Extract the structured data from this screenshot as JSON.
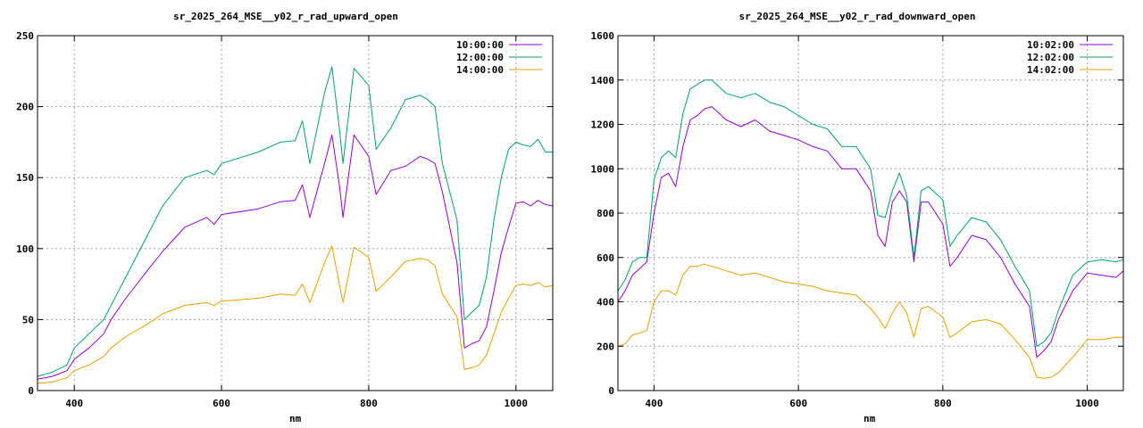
{
  "chart_data": [
    {
      "type": "line",
      "title": "sr_2025_264_MSE__y02_r_rad_upward_open",
      "xlabel": "nm",
      "ylabel": "",
      "xlim": [
        350,
        1050
      ],
      "ylim": [
        0,
        250
      ],
      "xticks": [
        400,
        600,
        800,
        1000
      ],
      "yticks": [
        0,
        50,
        100,
        150,
        200,
        250
      ],
      "grid": true,
      "legend_position": "top-right",
      "series": [
        {
          "name": "10:00:00",
          "color": "#9400d3",
          "x": [
            350,
            370,
            390,
            400,
            420,
            440,
            450,
            470,
            500,
            520,
            550,
            580,
            590,
            600,
            650,
            680,
            700,
            710,
            720,
            740,
            750,
            760,
            765,
            780,
            800,
            810,
            830,
            850,
            870,
            880,
            890,
            900,
            920,
            930,
            940,
            950,
            960,
            970,
            980,
            990,
            1000,
            1010,
            1020,
            1030,
            1040,
            1050
          ],
          "y": [
            8,
            10,
            14,
            22,
            30,
            40,
            50,
            65,
            85,
            98,
            115,
            122,
            117,
            124,
            128,
            133,
            134,
            145,
            122,
            160,
            180,
            145,
            122,
            180,
            165,
            138,
            155,
            158,
            165,
            163,
            160,
            140,
            90,
            30,
            33,
            35,
            45,
            70,
            97,
            115,
            132,
            133,
            130,
            134,
            131,
            130
          ]
        },
        {
          "name": "12:00:00",
          "color": "#009e73",
          "x": [
            350,
            370,
            390,
            400,
            420,
            440,
            450,
            470,
            500,
            520,
            550,
            580,
            590,
            600,
            650,
            680,
            700,
            710,
            720,
            740,
            750,
            760,
            765,
            780,
            800,
            810,
            830,
            850,
            870,
            880,
            890,
            900,
            920,
            930,
            940,
            950,
            960,
            970,
            980,
            990,
            1000,
            1010,
            1020,
            1030,
            1040,
            1050
          ],
          "y": [
            10,
            13,
            18,
            30,
            40,
            50,
            60,
            80,
            110,
            130,
            150,
            155,
            152,
            160,
            168,
            175,
            176,
            190,
            160,
            210,
            228,
            185,
            160,
            227,
            215,
            170,
            185,
            205,
            208,
            205,
            200,
            160,
            120,
            50,
            55,
            60,
            80,
            120,
            150,
            170,
            175,
            173,
            172,
            177,
            168,
            168
          ]
        },
        {
          "name": "14:00:00",
          "color": "#e69f00",
          "x": [
            350,
            370,
            390,
            400,
            420,
            440,
            450,
            470,
            500,
            520,
            550,
            580,
            590,
            600,
            650,
            680,
            700,
            710,
            720,
            740,
            750,
            760,
            765,
            780,
            800,
            810,
            830,
            850,
            870,
            880,
            890,
            900,
            920,
            930,
            940,
            950,
            960,
            970,
            980,
            990,
            1000,
            1010,
            1020,
            1030,
            1040,
            1050
          ],
          "y": [
            5,
            6,
            9,
            14,
            18,
            24,
            30,
            38,
            47,
            54,
            60,
            62,
            60,
            63,
            65,
            68,
            67,
            75,
            62,
            90,
            102,
            75,
            62,
            101,
            94,
            70,
            80,
            91,
            93,
            92,
            88,
            68,
            52,
            15,
            16,
            18,
            25,
            40,
            55,
            65,
            74,
            75,
            74,
            76,
            73,
            74
          ]
        }
      ]
    },
    {
      "type": "line",
      "title": "sr_2025_264_MSE__y02_r_rad_downward_open",
      "xlabel": "nm",
      "ylabel": "",
      "xlim": [
        350,
        1050
      ],
      "ylim": [
        0,
        1600
      ],
      "xticks": [
        400,
        600,
        800,
        1000
      ],
      "yticks": [
        0,
        200,
        400,
        600,
        800,
        1000,
        1200,
        1400,
        1600
      ],
      "grid": true,
      "legend_position": "top-right",
      "series": [
        {
          "name": "10:02:00",
          "color": "#9400d3",
          "x": [
            350,
            360,
            370,
            380,
            390,
            400,
            410,
            420,
            430,
            440,
            450,
            460,
            470,
            480,
            500,
            520,
            540,
            560,
            580,
            600,
            620,
            640,
            660,
            680,
            700,
            710,
            720,
            730,
            740,
            750,
            760,
            770,
            780,
            800,
            810,
            820,
            840,
            860,
            880,
            900,
            920,
            930,
            940,
            950,
            960,
            980,
            1000,
            1020,
            1040,
            1050
          ],
          "y": [
            400,
            450,
            520,
            550,
            580,
            800,
            960,
            980,
            920,
            1100,
            1220,
            1240,
            1270,
            1280,
            1220,
            1190,
            1220,
            1170,
            1150,
            1130,
            1100,
            1080,
            1000,
            1000,
            900,
            700,
            650,
            850,
            900,
            850,
            580,
            850,
            850,
            750,
            560,
            600,
            700,
            680,
            600,
            480,
            380,
            150,
            180,
            220,
            320,
            450,
            530,
            520,
            510,
            540
          ]
        },
        {
          "name": "12:02:00",
          "color": "#009e73",
          "x": [
            350,
            360,
            370,
            380,
            390,
            400,
            410,
            420,
            430,
            440,
            450,
            460,
            470,
            480,
            500,
            520,
            540,
            560,
            580,
            600,
            620,
            640,
            660,
            680,
            700,
            710,
            720,
            730,
            740,
            750,
            760,
            770,
            780,
            800,
            810,
            820,
            840,
            860,
            880,
            900,
            920,
            930,
            940,
            950,
            960,
            980,
            1000,
            1020,
            1040,
            1050
          ],
          "y": [
            450,
            500,
            580,
            600,
            600,
            950,
            1050,
            1080,
            1050,
            1250,
            1360,
            1380,
            1400,
            1400,
            1340,
            1320,
            1340,
            1300,
            1280,
            1240,
            1200,
            1180,
            1100,
            1100,
            1000,
            790,
            780,
            900,
            980,
            880,
            600,
            900,
            920,
            860,
            650,
            700,
            780,
            760,
            680,
            560,
            450,
            200,
            220,
            260,
            360,
            520,
            580,
            590,
            580,
            590
          ]
        },
        {
          "name": "14:02:00",
          "color": "#e69f00",
          "x": [
            350,
            360,
            370,
            380,
            390,
            400,
            410,
            420,
            430,
            440,
            450,
            460,
            470,
            480,
            500,
            520,
            540,
            560,
            580,
            600,
            620,
            640,
            660,
            680,
            700,
            710,
            720,
            730,
            740,
            750,
            760,
            770,
            780,
            800,
            810,
            820,
            840,
            860,
            880,
            900,
            920,
            930,
            940,
            950,
            960,
            980,
            1000,
            1020,
            1040,
            1050
          ],
          "y": [
            200,
            210,
            250,
            260,
            270,
            400,
            450,
            450,
            430,
            520,
            560,
            560,
            570,
            560,
            540,
            520,
            530,
            510,
            490,
            480,
            470,
            450,
            440,
            430,
            370,
            330,
            280,
            350,
            400,
            350,
            240,
            370,
            380,
            330,
            240,
            260,
            310,
            320,
            300,
            230,
            150,
            60,
            55,
            60,
            80,
            150,
            230,
            230,
            240,
            240
          ]
        }
      ]
    }
  ]
}
